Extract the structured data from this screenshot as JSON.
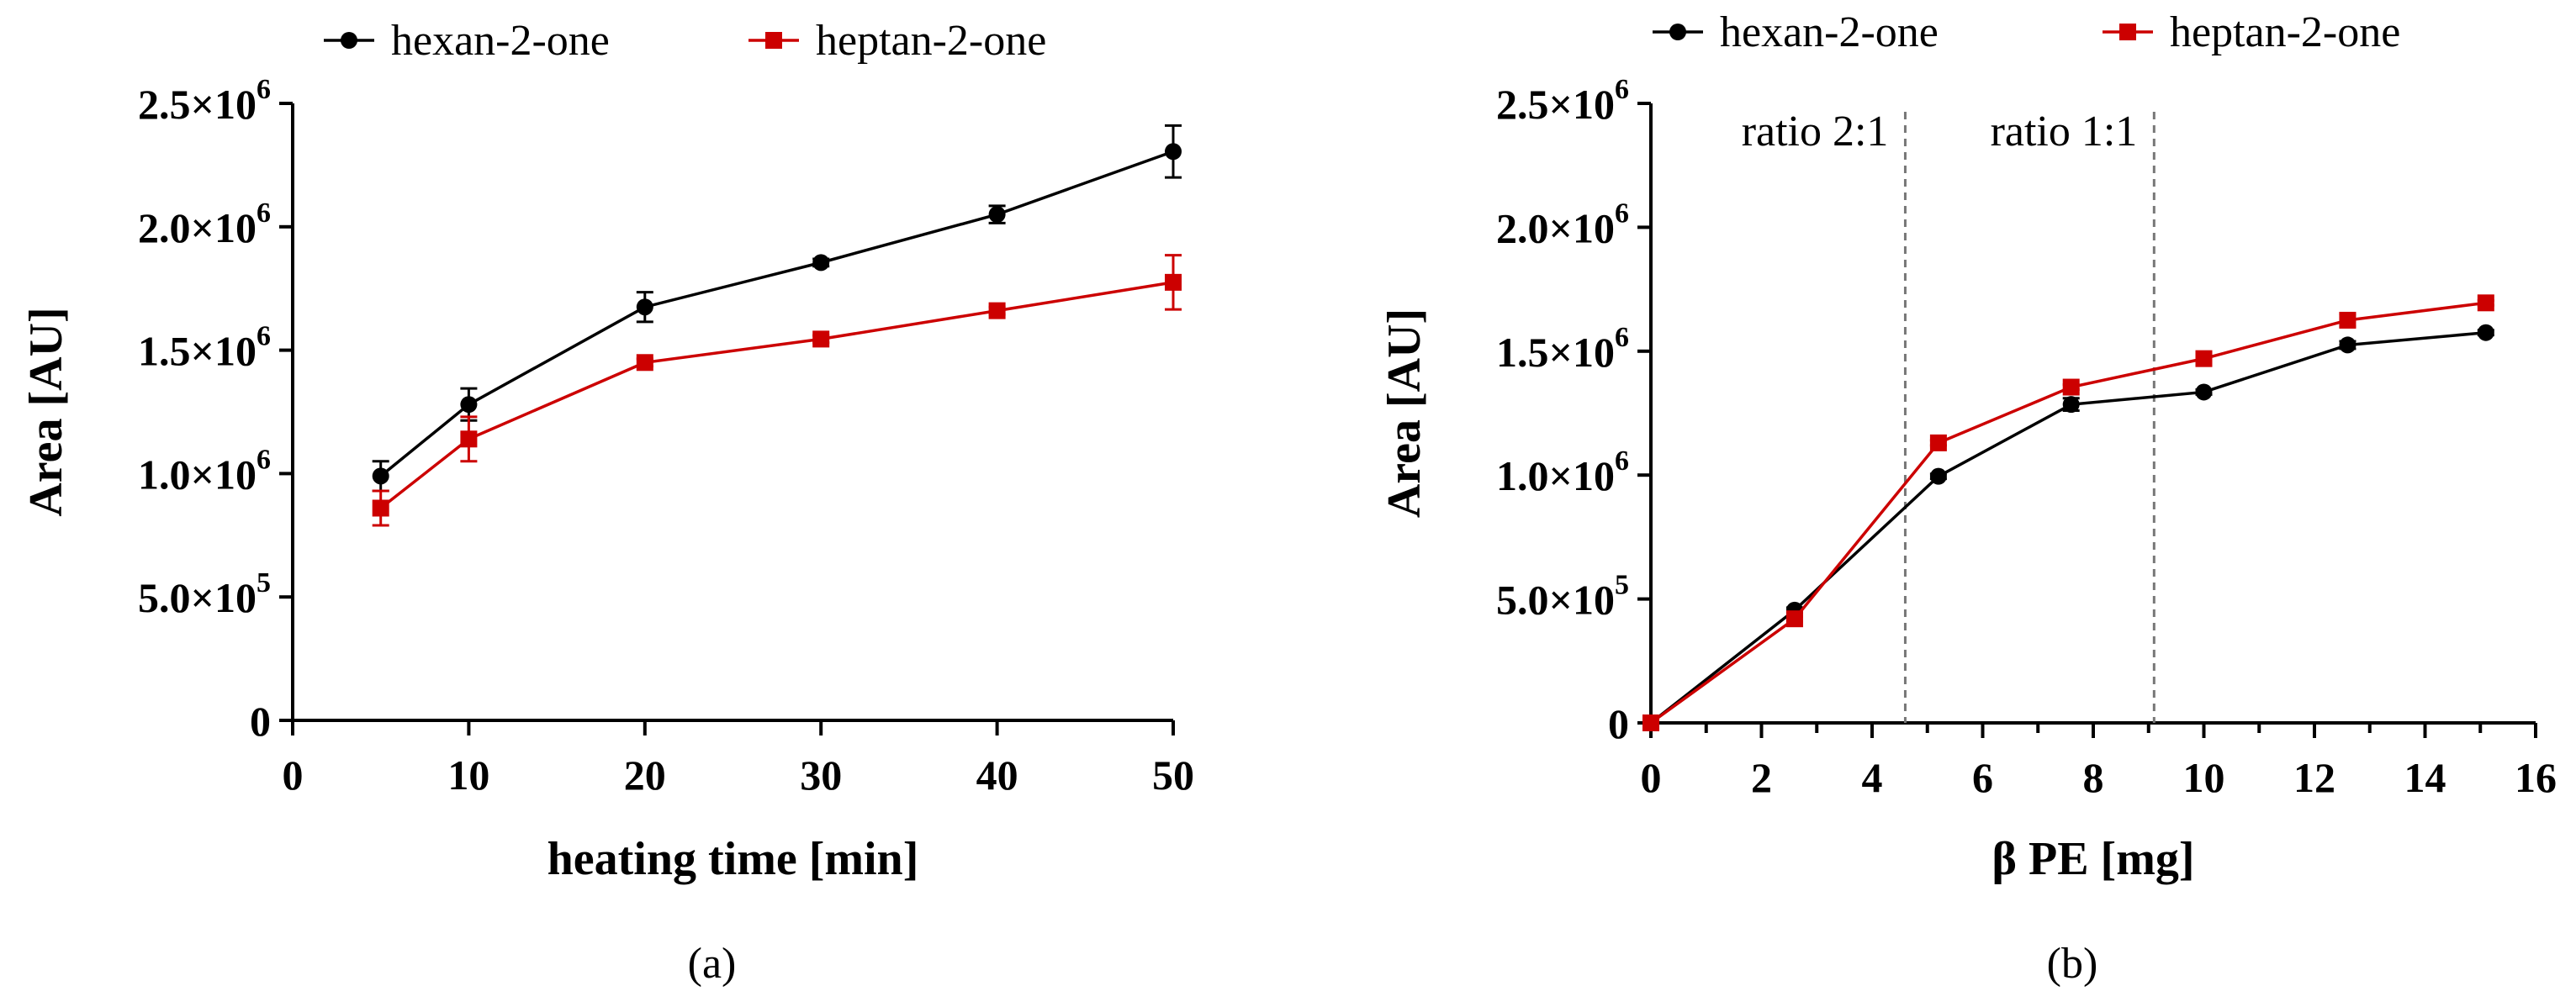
{
  "chart_data": [
    {
      "type": "line",
      "panel_label": "(a)",
      "xlabel": "heating time [min]",
      "ylabel": "Area [AU]",
      "xlim": [
        0,
        50
      ],
      "ylim": [
        0,
        2500000
      ],
      "x_ticks": [
        0,
        10,
        20,
        30,
        40,
        50
      ],
      "x_tick_labels": [
        "0",
        "10",
        "20",
        "30",
        "40",
        "50"
      ],
      "y_ticks": [
        0,
        500000,
        1000000,
        1500000,
        2000000,
        2500000
      ],
      "y_tick_labels": [
        {
          "mantissa": "0",
          "exp": ""
        },
        {
          "mantissa": "5.0×10",
          "exp": "5"
        },
        {
          "mantissa": "1.0×10",
          "exp": "6"
        },
        {
          "mantissa": "1.5×10",
          "exp": "6"
        },
        {
          "mantissa": "2.0×10",
          "exp": "6"
        },
        {
          "mantissa": "2.5×10",
          "exp": "6"
        }
      ],
      "legend_position": "top",
      "series": [
        {
          "name": "hexan-2-one",
          "color": "#000000",
          "marker": "circle",
          "x": [
            5,
            10,
            20,
            30,
            40,
            50
          ],
          "y": [
            990000,
            1280000,
            1675000,
            1855000,
            2050000,
            2305000
          ],
          "err": [
            60000,
            65000,
            60000,
            15000,
            35000,
            105000
          ]
        },
        {
          "name": "heptan-2-one",
          "color": "#cc0000",
          "marker": "square",
          "x": [
            5,
            10,
            20,
            30,
            40,
            50
          ],
          "y": [
            860000,
            1140000,
            1450000,
            1545000,
            1660000,
            1775000
          ],
          "err": [
            70000,
            90000,
            15000,
            15000,
            15000,
            110000
          ]
        }
      ]
    },
    {
      "type": "line",
      "panel_label": "(b)",
      "xlabel": "β PE [mg]",
      "ylabel": "Area [AU]",
      "xlim": [
        0,
        16
      ],
      "ylim": [
        0,
        2500000
      ],
      "x_ticks": [
        0,
        2,
        4,
        6,
        8,
        10,
        12,
        14,
        16
      ],
      "x_tick_labels": [
        "0",
        "2",
        "4",
        "6",
        "8",
        "10",
        "12",
        "14",
        "16"
      ],
      "y_ticks": [
        0,
        500000,
        1000000,
        1500000,
        2000000,
        2500000
      ],
      "y_tick_labels": [
        {
          "mantissa": "0",
          "exp": ""
        },
        {
          "mantissa": "5.0×10",
          "exp": "5"
        },
        {
          "mantissa": "1.0×10",
          "exp": "6"
        },
        {
          "mantissa": "1.5×10",
          "exp": "6"
        },
        {
          "mantissa": "2.0×10",
          "exp": "6"
        },
        {
          "mantissa": "2.5×10",
          "exp": "6"
        }
      ],
      "legend_position": "top",
      "annotations": [
        {
          "text": "ratio 2:1",
          "x_line": 4.6
        },
        {
          "text": "ratio 1:1",
          "x_line": 9.1
        }
      ],
      "series": [
        {
          "name": "hexan-2-one",
          "color": "#000000",
          "marker": "circle",
          "x": [
            0,
            2.6,
            5.2,
            7.6,
            10,
            12.6,
            15.1
          ],
          "y": [
            0,
            455000,
            995000,
            1285000,
            1335000,
            1525000,
            1575000
          ],
          "err": [
            0,
            10000,
            10000,
            25000,
            10000,
            15000,
            10000
          ]
        },
        {
          "name": "heptan-2-one",
          "color": "#cc0000",
          "marker": "square",
          "x": [
            0,
            2.6,
            5.2,
            7.6,
            10,
            12.6,
            15.1
          ],
          "y": [
            0,
            420000,
            1130000,
            1355000,
            1470000,
            1625000,
            1695000
          ],
          "err": [
            0,
            10000,
            10000,
            10000,
            10000,
            25000,
            10000
          ]
        }
      ]
    }
  ]
}
